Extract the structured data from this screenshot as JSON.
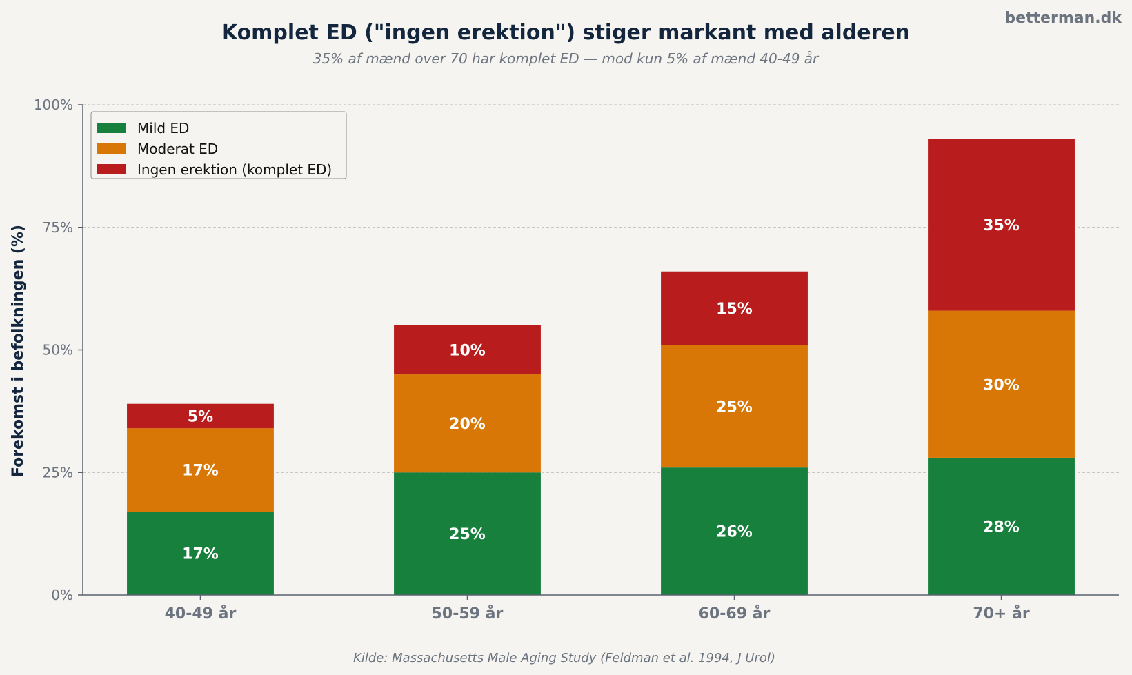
{
  "brand": "betterman.dk",
  "source_note": "Kilde: Massachusetts Male Aging Study (Feldman et al. 1994, J Urol)",
  "colors": {
    "background": "#f5f4f0",
    "mild": "#17803d",
    "moderate": "#d97706",
    "complete": "#b91c1c"
  },
  "chart_data": {
    "type": "bar",
    "stacked": true,
    "title": "Komplet ED (\"ingen erektion\") stiger markant med alderen",
    "subtitle": "35% af mænd over 70 har komplet ED — mod kun 5% af mænd 40-49 år",
    "xlabel": "",
    "ylabel": "Forekomst i befolkningen (%)",
    "ylim": [
      0,
      100
    ],
    "yticks": [
      0,
      25,
      50,
      75,
      100
    ],
    "ytick_labels": [
      "0%",
      "25%",
      "50%",
      "75%",
      "100%"
    ],
    "grid": true,
    "legend_position": "top-left",
    "categories": [
      "40-49 år",
      "50-59 år",
      "60-69 år",
      "70+ år"
    ],
    "series": [
      {
        "name": "Mild ED",
        "color": "#17803d",
        "values": [
          17,
          25,
          26,
          28
        ],
        "labels": [
          "17%",
          "25%",
          "26%",
          "28%"
        ]
      },
      {
        "name": "Moderat ED",
        "color": "#d97706",
        "values": [
          17,
          20,
          25,
          30
        ],
        "labels": [
          "17%",
          "20%",
          "25%",
          "30%"
        ]
      },
      {
        "name": "Ingen erektion (komplet ED)",
        "color": "#b91c1c",
        "values": [
          5,
          10,
          15,
          35
        ],
        "labels": [
          "5%",
          "10%",
          "15%",
          "35%"
        ]
      }
    ]
  }
}
